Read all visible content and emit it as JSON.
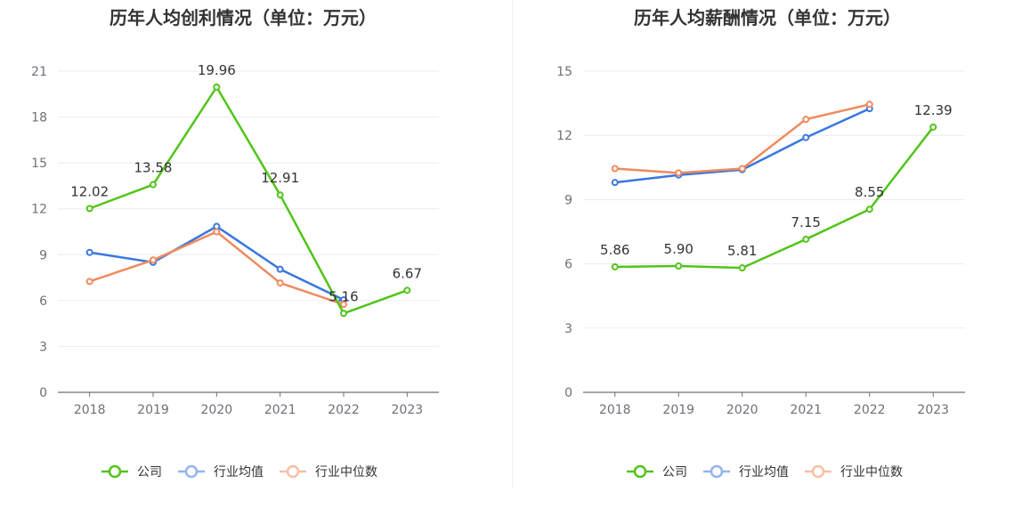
{
  "charts": [
    {
      "title": "历年人均创利情况（单位：万元）",
      "chart_data": {
        "type": "line",
        "categories": [
          "2018",
          "2019",
          "2020",
          "2021",
          "2022",
          "2023"
        ],
        "ylim": [
          0,
          21
        ],
        "yticks": [
          "0",
          "3",
          "6",
          "9",
          "12",
          "15",
          "18",
          "21"
        ],
        "grid": true,
        "legend_position": "bottom",
        "series": [
          {
            "name": "公司",
            "color": "#52c41a",
            "values": [
              12.02,
              13.58,
              19.96,
              12.91,
              5.16,
              6.67
            ],
            "labels": [
              "12.02",
              "13.58",
              "19.96",
              "12.91",
              "5.16",
              "6.67"
            ]
          },
          {
            "name": "行业均值",
            "color": "#3a77e0",
            "values": [
              9.15,
              8.5,
              10.85,
              8.05,
              6.05,
              null
            ]
          },
          {
            "name": "行业中位数",
            "color": "#f08a5d",
            "values": [
              7.25,
              8.65,
              10.5,
              7.15,
              5.75,
              null
            ]
          }
        ]
      }
    },
    {
      "title": "历年人均薪酬情况（单位：万元）",
      "chart_data": {
        "type": "line",
        "categories": [
          "2018",
          "2019",
          "2020",
          "2021",
          "2022",
          "2023"
        ],
        "ylim": [
          0,
          15
        ],
        "yticks": [
          "0",
          "3",
          "6",
          "9",
          "12",
          "15"
        ],
        "grid": true,
        "legend_position": "bottom",
        "series": [
          {
            "name": "公司",
            "color": "#52c41a",
            "values": [
              5.86,
              5.9,
              5.81,
              7.15,
              8.55,
              12.39
            ],
            "labels": [
              "5.86",
              "5.90",
              "5.81",
              "7.15",
              "8.55",
              "12.39"
            ]
          },
          {
            "name": "行业均值",
            "color": "#3a77e0",
            "values": [
              9.8,
              10.15,
              10.4,
              11.9,
              13.25,
              null
            ]
          },
          {
            "name": "行业中位数",
            "color": "#f08a5d",
            "values": [
              10.45,
              10.25,
              10.45,
              12.75,
              13.45,
              null
            ]
          }
        ]
      }
    }
  ]
}
